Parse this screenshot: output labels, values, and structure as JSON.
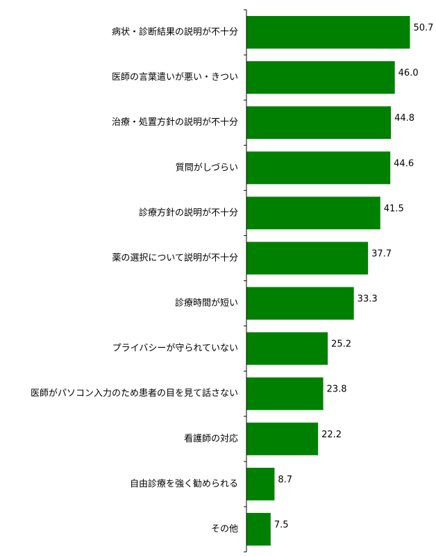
{
  "chart_data": {
    "type": "bar",
    "orientation": "horizontal",
    "categories": [
      "病状・診断結果の説明が不十分",
      "医師の言葉遣いが悪い・きつい",
      "治療・処置方針の説明が不十分",
      "質問がしづらい",
      "診療方針の説明が不十分",
      "薬の選択について説明が不十分",
      "診療時間が短い",
      "プライバシーが守られていない",
      "医師がパソコン入力のため患者の目を見て話さない",
      "看護師の対応",
      "自由診療を強く勧められる",
      "その他"
    ],
    "values": [
      50.7,
      46.0,
      44.8,
      44.6,
      41.5,
      37.7,
      33.3,
      25.2,
      23.8,
      22.2,
      8.7,
      7.5
    ],
    "value_labels": [
      "50.7",
      "46.0",
      "44.8",
      "44.6",
      "41.5",
      "37.7",
      "33.3",
      "25.2",
      "23.8",
      "22.2",
      "8.7",
      "7.5"
    ],
    "title": "",
    "xlabel": "",
    "ylabel": "",
    "xlim": [
      0,
      55
    ],
    "grid": false,
    "legend": false,
    "bar_color": "#008000"
  }
}
